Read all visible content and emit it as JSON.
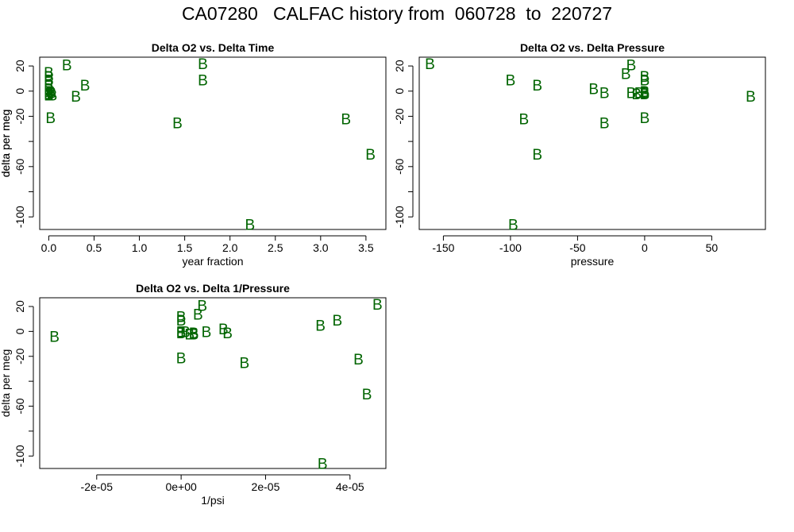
{
  "title": "CA07280   CALFAC history from  060728  to  220727",
  "colors": {
    "point": "#006400",
    "axis": "#000000",
    "frame": "#000000"
  },
  "chart_data": [
    {
      "type": "scatter",
      "title": "Delta O2 vs. Delta Time",
      "xlabel": "year fraction",
      "ylabel": "delta per meg",
      "xlim": [
        -0.1,
        3.72
      ],
      "ylim": [
        -110,
        27
      ],
      "x_ticks": [
        0.0,
        0.5,
        1.0,
        1.5,
        2.0,
        2.5,
        3.0,
        3.5
      ],
      "x_tick_labels": [
        "0.0",
        "0.5",
        "1.0",
        "1.5",
        "2.0",
        "2.5",
        "3.0",
        "3.5"
      ],
      "y_ticks": [
        20,
        0,
        -20,
        -40,
        -60,
        -80,
        -100
      ],
      "y_tick_labels": [
        "20",
        "0",
        "-20",
        "",
        "-60",
        "",
        "-100"
      ],
      "marker": "B",
      "series": [
        {
          "x": [
            0.0,
            0.0,
            0.0,
            0.0,
            0.0,
            0.0,
            0.0,
            0.0,
            0.02,
            0.03,
            0.04,
            0.02,
            0.2,
            0.3,
            0.4,
            1.42,
            1.7,
            1.7,
            2.22,
            3.28,
            3.55
          ],
          "y": [
            15,
            12,
            9,
            5,
            2,
            0,
            -2,
            -3,
            0,
            -1,
            -3,
            -21,
            21,
            -4,
            5,
            -25,
            22,
            9,
            -106,
            -22,
            -50
          ]
        }
      ]
    },
    {
      "type": "scatter",
      "title": "Delta O2 vs. Delta Pressure",
      "xlabel": "pressure",
      "ylabel": "delta per meg",
      "xlim": [
        -168,
        90
      ],
      "ylim": [
        -110,
        27
      ],
      "x_ticks": [
        -150,
        -100,
        -50,
        0,
        50
      ],
      "x_tick_labels": [
        "-150",
        "-100",
        "-50",
        "0",
        "50"
      ],
      "y_ticks": [
        20,
        0,
        -20,
        -40,
        -60,
        -80,
        -100
      ],
      "y_tick_labels": [
        "20",
        "0",
        "-20",
        "",
        "-60",
        "",
        "-100"
      ],
      "marker": "B",
      "series": [
        {
          "x": [
            -160,
            -100,
            -98,
            -90,
            -80,
            -80,
            -38,
            -30,
            -30,
            -14,
            -10,
            -10,
            -6,
            -4,
            0,
            0,
            0,
            0,
            0,
            0,
            79
          ],
          "y": [
            22,
            9,
            -106,
            -22,
            5,
            -50,
            2,
            -1,
            -25,
            14,
            21,
            -1,
            -2,
            -1,
            12,
            9,
            0,
            -1,
            -2,
            -21,
            -4
          ]
        }
      ]
    },
    {
      "type": "scatter",
      "title": "Delta O2 vs. Delta 1/Pressure",
      "xlabel": "1/psi",
      "ylabel": "delta per meg",
      "xlim": [
        -3.35e-05,
        4.85e-05
      ],
      "ylim": [
        -110,
        27
      ],
      "x_ticks": [
        -2e-05,
        0,
        2e-05,
        4e-05
      ],
      "x_tick_labels": [
        "-2e-05",
        "0e+00",
        "2e-05",
        "4e-05"
      ],
      "y_ticks": [
        20,
        0,
        -20,
        -40,
        -60,
        -80,
        -100
      ],
      "y_tick_labels": [
        "20",
        "0",
        "-20",
        "",
        "-60",
        "",
        "-100"
      ],
      "marker": "B",
      "series": [
        {
          "x": [
            -3e-05,
            0,
            0,
            0,
            0,
            0,
            1e-06,
            2e-06,
            3e-06,
            3e-06,
            4e-06,
            5e-06,
            6e-06,
            1e-05,
            1.1e-05,
            1.5e-05,
            3.3e-05,
            3.7e-05,
            4.2e-05,
            4.4e-05,
            4.65e-05,
            3.35e-05
          ],
          "y": [
            -4,
            12,
            9,
            0,
            -1,
            -21,
            0,
            -2,
            -2,
            -1,
            14,
            21,
            0,
            2,
            -1,
            -25,
            5,
            9,
            -22,
            -50,
            22,
            -106
          ]
        }
      ]
    }
  ]
}
